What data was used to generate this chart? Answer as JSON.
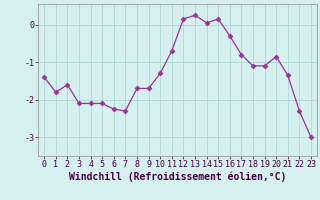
{
  "x": [
    0,
    1,
    2,
    3,
    4,
    5,
    6,
    7,
    8,
    9,
    10,
    11,
    12,
    13,
    14,
    15,
    16,
    17,
    18,
    19,
    20,
    21,
    22,
    23
  ],
  "y": [
    -1.4,
    -1.8,
    -1.6,
    -2.1,
    -2.1,
    -2.1,
    -2.25,
    -2.3,
    -1.7,
    -1.7,
    -1.3,
    -0.7,
    0.15,
    0.25,
    0.05,
    0.15,
    -0.3,
    -0.8,
    -1.1,
    -1.1,
    -0.85,
    -1.35,
    -2.3,
    -3.0
  ],
  "line_color": "#993399",
  "marker": "D",
  "marker_size": 2.5,
  "bg_color": "#d6f0f0",
  "grid_color": "#b0d8d8",
  "xlabel": "Windchill (Refroidissement éolien,°C)",
  "xlabel_fontsize": 7,
  "tick_fontsize": 6,
  "ylim": [
    -3.5,
    0.55
  ],
  "yticks": [
    -3,
    -2,
    -1,
    0
  ],
  "xlim": [
    -0.5,
    23.5
  ],
  "xticks": [
    0,
    1,
    2,
    3,
    4,
    5,
    6,
    7,
    8,
    9,
    10,
    11,
    12,
    13,
    14,
    15,
    16,
    17,
    18,
    19,
    20,
    21,
    22,
    23
  ]
}
